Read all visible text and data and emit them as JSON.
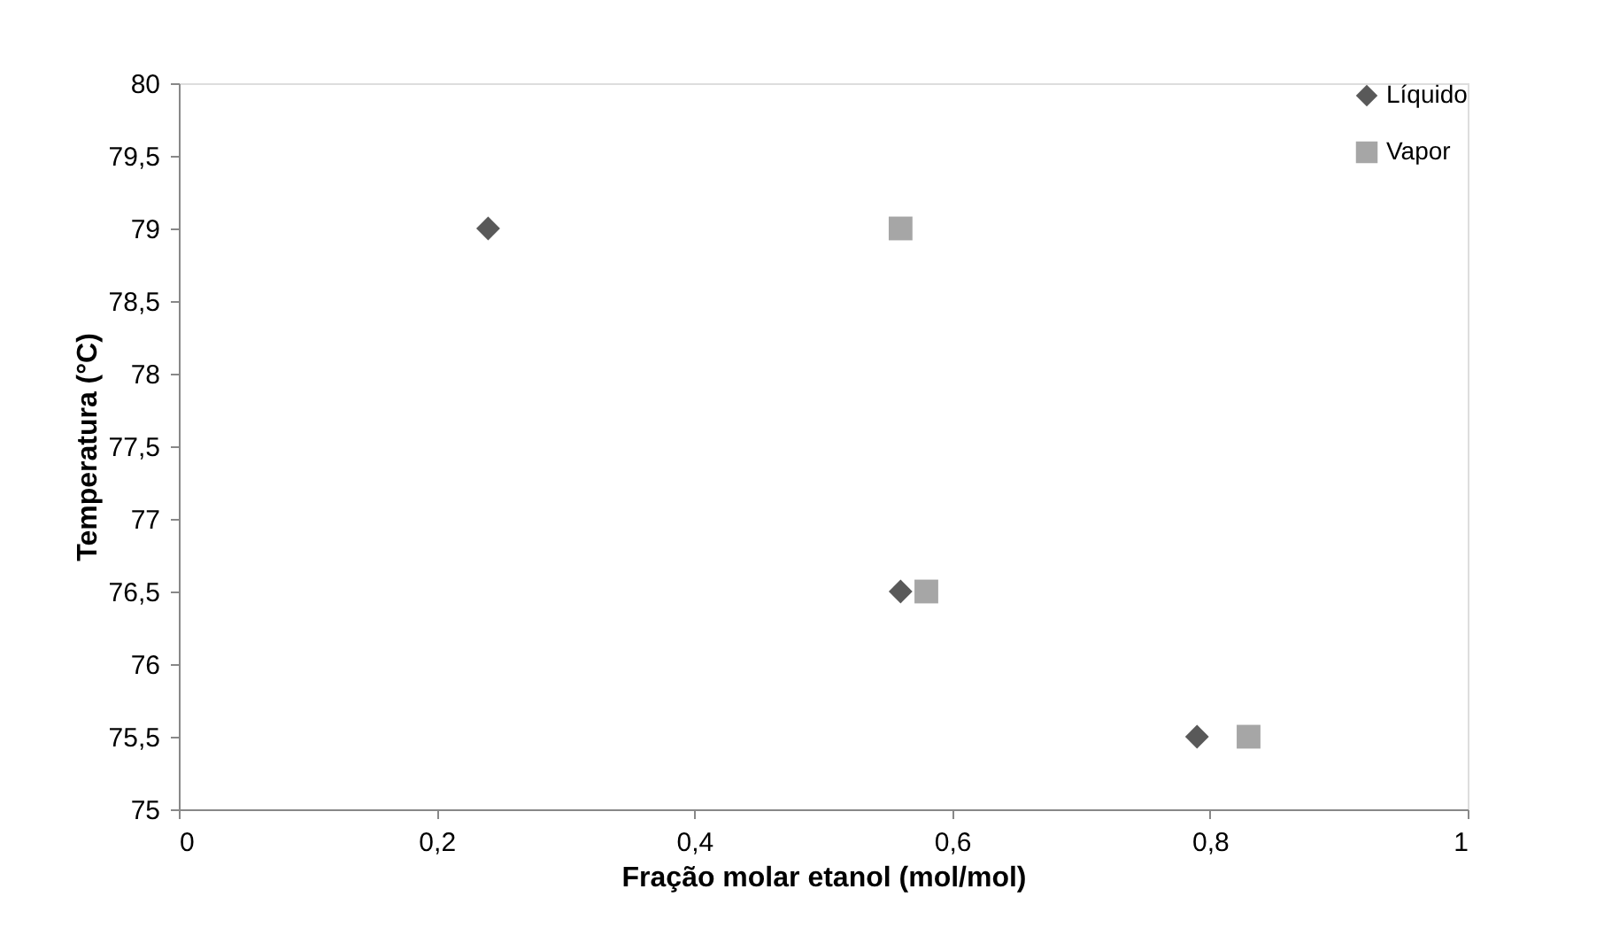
{
  "chart_data": {
    "type": "scatter",
    "xlabel": "Fração molar etanol (mol/mol)",
    "ylabel": "Temperatura (°C)",
    "series": [
      {
        "name": "Líquido",
        "color": "#595959",
        "marker": "diamond",
        "x": [
          0.24,
          0.56,
          0.79
        ],
        "values": [
          79,
          76.5,
          75.5
        ]
      },
      {
        "name": "Vapor",
        "color": "#a6a6a6",
        "marker": "square",
        "x": [
          0.56,
          0.58,
          0.83
        ],
        "values": [
          79,
          76.5,
          75.5
        ]
      }
    ],
    "xlim": [
      0,
      1
    ],
    "ylim": [
      75,
      80
    ],
    "xticks": [
      0,
      {
        "value": 0.2,
        "label": "0,2"
      },
      {
        "value": 0.4,
        "label": "0,4"
      },
      {
        "value": 0.6,
        "label": "0,6"
      },
      {
        "value": 0.8,
        "label": "0,8"
      },
      1
    ],
    "yticks": [
      75,
      {
        "value": 75.5,
        "label": "75,5"
      },
      76,
      {
        "value": 76.5,
        "label": "76,5"
      },
      77,
      {
        "value": 77.5,
        "label": "77,5"
      },
      78,
      {
        "value": 78.5,
        "label": "78,5"
      },
      79,
      {
        "value": 79.5,
        "label": "79,5"
      },
      80
    ],
    "grid": false,
    "legend": "top right"
  }
}
